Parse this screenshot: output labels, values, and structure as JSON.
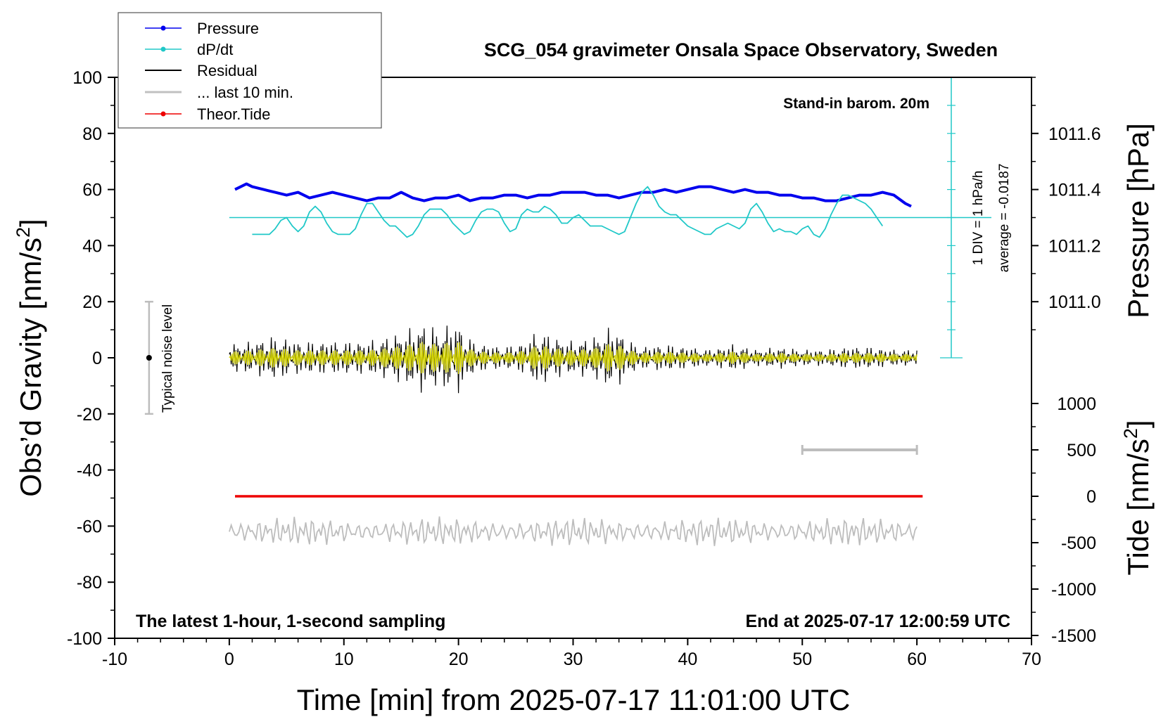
{
  "chart_data": {
    "type": "line",
    "title": "SCG_054 gravimeter Onsala Space Observatory, Sweden",
    "xlabel": "Time [min] from 2025-07-17 11:01:00 UTC",
    "ylabel_left": "Obs’d Gravity [nm/s",
    "ylabel_right_top": "Pressure [hPa]",
    "ylabel_right_bottom": "Tide [nm/s",
    "superscript": "2",
    "xlim": [
      -10,
      70
    ],
    "ylim": [
      -100,
      100
    ],
    "x_ticks": [
      "-10",
      "0",
      "10",
      "20",
      "30",
      "40",
      "50",
      "60",
      "70"
    ],
    "y_ticks_left": [
      "-100",
      "-80",
      "-60",
      "-40",
      "-20",
      "0",
      "20",
      "40",
      "60",
      "80",
      "100"
    ],
    "pressure_axis": {
      "ticks": [
        "1011.0",
        "1011.2",
        "1011.4",
        "1011.6"
      ],
      "values": [
        1011.0,
        1011.2,
        1011.4,
        1011.6
      ],
      "gravity_equiv": [
        20,
        40,
        60,
        80
      ]
    },
    "tide_axis": {
      "ticks": [
        "-1500",
        "-1000",
        "-500",
        "0",
        "500",
        "1000"
      ],
      "values": [
        -1500,
        -1000,
        -500,
        0,
        500,
        1000
      ]
    },
    "legend": [
      {
        "label": "Pressure",
        "color": "#0000ee",
        "marker": "dot"
      },
      {
        "label": "dP/dt",
        "color": "#20c8c8",
        "marker": "dot"
      },
      {
        "label": "Residual",
        "color": "#000000",
        "marker": "line"
      },
      {
        "label": "... last 10 min.",
        "color": "#c0c0c0",
        "marker": "line"
      },
      {
        "label": "Theor.Tide",
        "color": "#ee0000",
        "marker": "dot"
      }
    ],
    "annotations": {
      "barometer": "Stand-in barom. 20m",
      "dpdt_scale": "1 DIV = 1 hPa/h",
      "dpdt_average": "average = -0.0187",
      "noise": "Typical noise level",
      "bottom_left": "The latest 1-hour, 1-second sampling",
      "bottom_right": "End at 2025-07-17 12:00:59 UTC"
    },
    "series": [
      {
        "name": "Pressure",
        "color": "#0000ee",
        "x": [
          0.5,
          1,
          1.5,
          2,
          3,
          4,
          5,
          6,
          7,
          8,
          9,
          10,
          11,
          12,
          13,
          14,
          15,
          16,
          17,
          18,
          19,
          20,
          21,
          22,
          23,
          24,
          25,
          26,
          27,
          28,
          29,
          30,
          31,
          32,
          33,
          34,
          35,
          36,
          37,
          38,
          39,
          40,
          41,
          42,
          43,
          44,
          45,
          46,
          47,
          48,
          49,
          50,
          51,
          52,
          53,
          54,
          55,
          56,
          57,
          58,
          59,
          59.5
        ],
        "y": [
          60,
          61,
          62,
          61,
          60,
          59,
          58,
          59,
          57,
          58,
          59,
          58,
          57,
          56,
          57,
          57,
          59,
          57,
          56,
          57,
          57,
          58,
          56,
          57,
          57,
          58,
          58,
          57,
          58,
          58,
          59,
          59,
          59,
          58,
          58,
          57,
          58,
          59,
          59,
          60,
          59,
          60,
          61,
          61,
          60,
          59,
          60,
          59,
          59,
          58,
          58,
          57,
          57,
          56,
          56,
          57,
          58,
          58,
          59,
          58,
          55,
          54
        ]
      },
      {
        "name": "dP/dt",
        "color": "#20c8c8",
        "x": [
          2,
          2.5,
          3,
          3.5,
          4,
          4.5,
          5,
          5.5,
          6,
          6.5,
          7,
          7.5,
          8,
          8.5,
          9,
          9.5,
          10,
          10.5,
          11,
          11.5,
          12,
          12.5,
          13,
          13.5,
          14,
          14.5,
          15,
          15.5,
          16,
          16.5,
          17,
          17.5,
          18,
          18.5,
          19,
          19.5,
          20,
          20.5,
          21,
          21.5,
          22,
          22.5,
          23,
          23.5,
          24,
          24.5,
          25,
          25.5,
          26,
          26.5,
          27,
          27.5,
          28,
          28.5,
          29,
          29.5,
          30,
          30.5,
          31,
          31.5,
          32,
          32.5,
          33,
          33.5,
          34,
          34.5,
          35,
          35.5,
          36,
          36.5,
          37,
          37.5,
          38,
          38.5,
          39,
          39.5,
          40,
          40.5,
          41,
          41.5,
          42,
          42.5,
          43,
          43.5,
          44,
          44.5,
          45,
          45.5,
          46,
          46.5,
          47,
          47.5,
          48,
          48.5,
          49,
          49.5,
          50,
          50.5,
          51,
          51.5,
          52,
          52.5,
          53,
          53.5,
          54,
          54.5,
          55,
          55.5,
          56,
          56.5,
          57
        ],
        "y": [
          44,
          44,
          44,
          44,
          46,
          49,
          50,
          47,
          45,
          47,
          52,
          54,
          52,
          48,
          45,
          44,
          44,
          44,
          46,
          51,
          55,
          55,
          52,
          49,
          47,
          47,
          45,
          43,
          44,
          47,
          51,
          53,
          53,
          53,
          51,
          48,
          46,
          44,
          45,
          49,
          52,
          53,
          53,
          52,
          48,
          45,
          46,
          51,
          53,
          52,
          52,
          54,
          53,
          51,
          48,
          48,
          50,
          51,
          49,
          47,
          47,
          47,
          46,
          45,
          44,
          45,
          50,
          55,
          59,
          61,
          58,
          54,
          52,
          51,
          51,
          49,
          47,
          46,
          45,
          44,
          44,
          46,
          47,
          48,
          47,
          46,
          48,
          53,
          55,
          52,
          48,
          45,
          46,
          45,
          45,
          44,
          46,
          47,
          44,
          43,
          46,
          51,
          55,
          58,
          58,
          57,
          56,
          55,
          53,
          50,
          47
        ]
      },
      {
        "name": "Theor.Tide",
        "color": "#ee0000",
        "x": [
          0.5,
          60.5
        ],
        "y": [
          0,
          0
        ]
      }
    ],
    "residual_envelope": {
      "x": [
        0,
        2,
        4,
        6,
        8,
        10,
        12,
        14,
        16,
        17,
        18,
        19,
        20,
        21,
        22,
        24,
        26,
        27,
        28,
        30,
        32,
        33,
        34,
        35,
        36,
        38,
        40,
        42,
        44,
        46,
        48,
        50,
        52,
        54,
        56,
        58,
        60
      ],
      "amplitude": [
        5,
        6,
        8,
        6,
        6,
        6,
        6,
        8,
        11,
        13,
        11,
        12,
        13,
        7,
        5,
        4,
        6,
        11,
        8,
        6,
        8,
        11,
        10,
        6,
        4,
        5,
        4,
        3,
        5,
        3,
        4,
        3,
        3,
        4,
        4,
        3,
        3
      ]
    },
    "last10_noise": {
      "center": -62,
      "amplitude": 4
    },
    "noise_bar": {
      "x": -7,
      "low": -20,
      "high": 20,
      "center": 0
    },
    "tide_scale_bar": {
      "x": [
        50,
        60
      ],
      "y": 500
    },
    "pressure_scale": {
      "x": 63,
      "low": 0,
      "high": 100,
      "zero_line": 50
    }
  }
}
